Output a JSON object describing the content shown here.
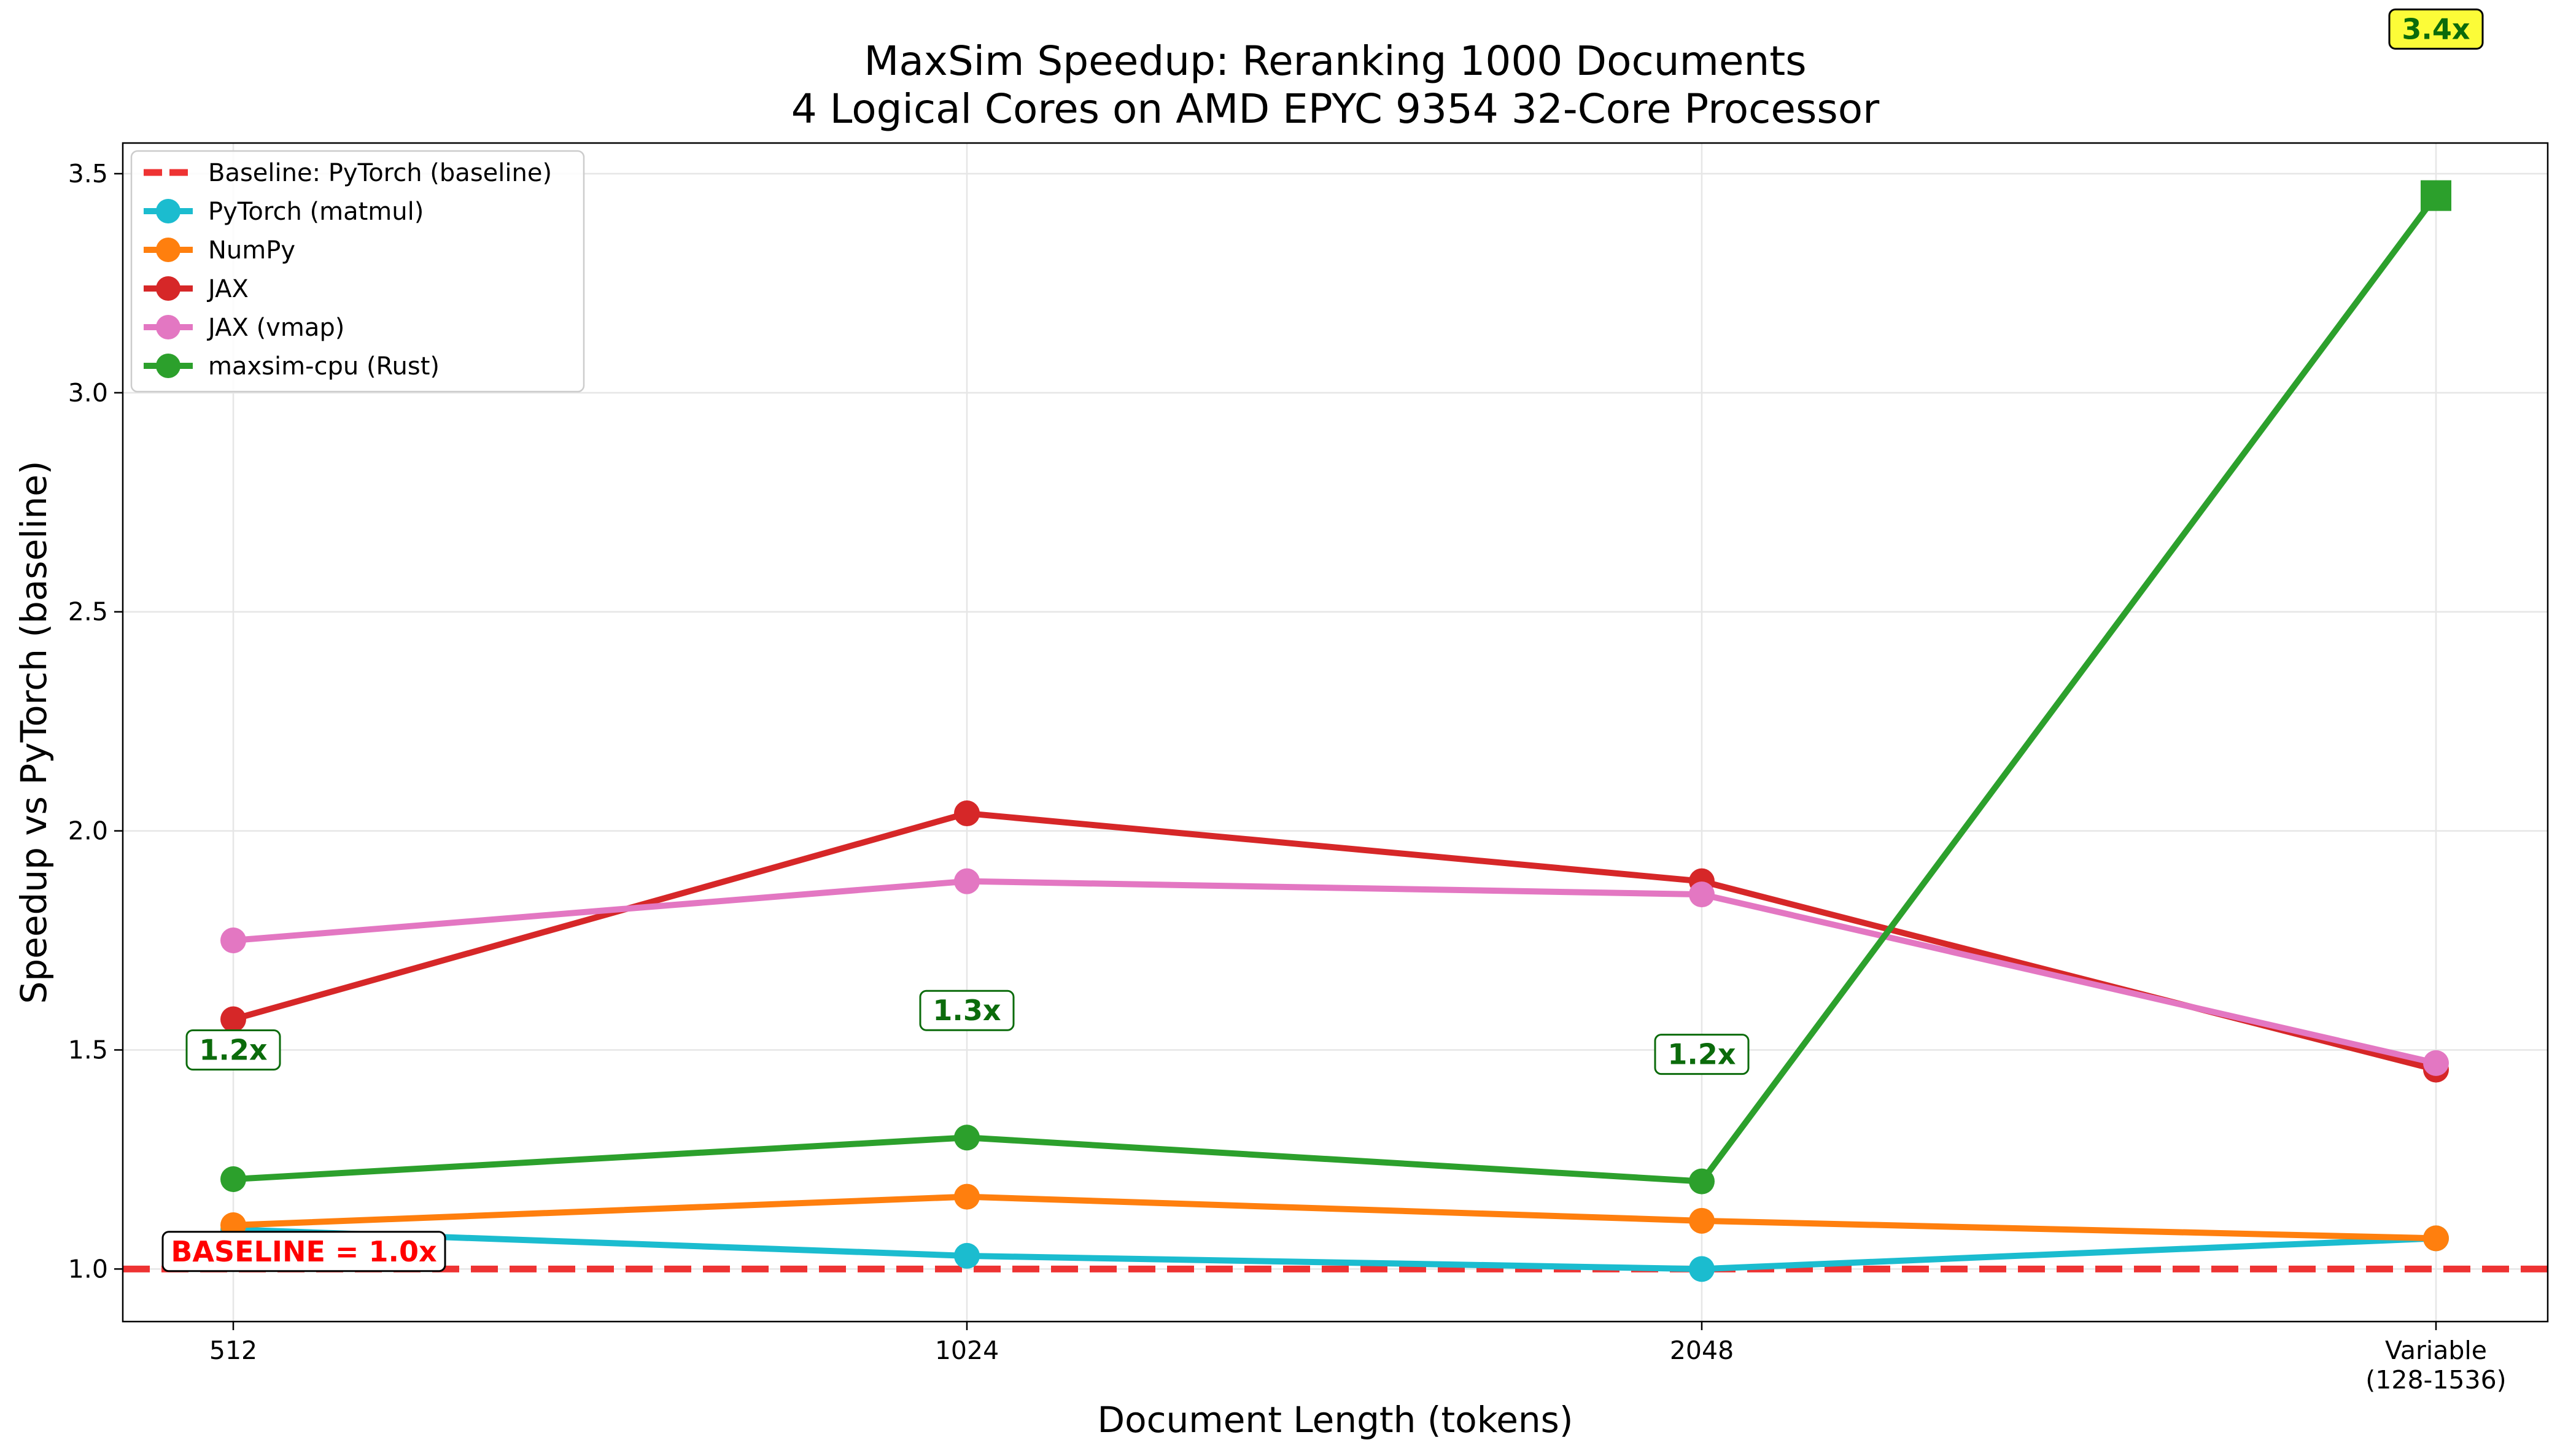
{
  "chart_data": {
    "type": "line",
    "title_line1": "MaxSim Speedup: Reranking 1000 Documents",
    "title_line2": "4 Logical Cores on AMD EPYC 9354 32-Core Processor",
    "xlabel": "Document Length (tokens)",
    "ylabel": "Speedup vs PyTorch (baseline)",
    "categories": [
      "512",
      "1024",
      "2048",
      "Variable\n(128-1536)"
    ],
    "category_lines": [
      [
        "512"
      ],
      [
        "1024"
      ],
      [
        "2048"
      ],
      [
        "Variable",
        "(128-1536)"
      ]
    ],
    "ylim": [
      0.88,
      3.57
    ],
    "yticks": [
      1.0,
      1.5,
      2.0,
      2.5,
      3.0,
      3.5
    ],
    "ytick_labels": [
      "1.0",
      "1.5",
      "2.0",
      "2.5",
      "3.0",
      "3.5"
    ],
    "grid": true,
    "legend_position": "top-left",
    "baseline": {
      "name": "Baseline: PyTorch (baseline)",
      "value": 1.0,
      "color": "#ee3333",
      "style": "dashed"
    },
    "series": [
      {
        "name": "PyTorch (matmul)",
        "color": "#1bbccf",
        "values": [
          1.09,
          1.03,
          1.0,
          1.07
        ]
      },
      {
        "name": "NumPy",
        "color": "#ff7f0e",
        "values": [
          1.1,
          1.165,
          1.11,
          1.07
        ]
      },
      {
        "name": "JAX",
        "color": "#d62728",
        "values": [
          1.57,
          2.04,
          1.885,
          1.455
        ]
      },
      {
        "name": "JAX (vmap)",
        "color": "#e377c2",
        "values": [
          1.75,
          1.885,
          1.855,
          1.47
        ]
      },
      {
        "name": "maxsim-cpu (Rust)",
        "color": "#2ca02c",
        "values": [
          1.205,
          1.3,
          1.2,
          3.45
        ],
        "last_marker": "square"
      }
    ],
    "annotations": [
      {
        "text": "1.2x",
        "category_index": 0,
        "y": 1.5,
        "style": "green"
      },
      {
        "text": "1.3x",
        "category_index": 1,
        "y": 1.59,
        "style": "green"
      },
      {
        "text": "1.2x",
        "category_index": 2,
        "y": 1.49,
        "style": "green"
      },
      {
        "text": "3.4x",
        "category_index": 3,
        "y": 3.83,
        "style": "yellow"
      },
      {
        "text": "BASELINE = 1.0x",
        "category_index": 0,
        "y": 1.04,
        "style": "baseline"
      }
    ]
  }
}
